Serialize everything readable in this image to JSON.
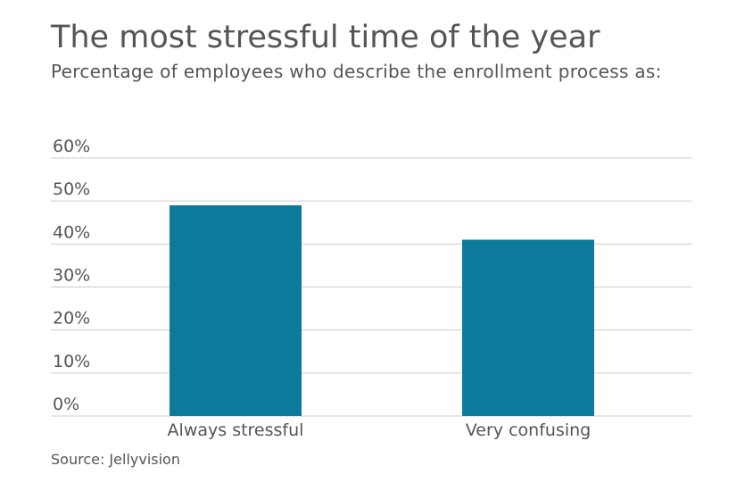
{
  "chart_data": {
    "type": "bar",
    "title": "The most stressful time of the year",
    "subtitle": "Percentage of employees who describe the enrollment process as:",
    "source": "Source: Jellyvision",
    "categories": [
      "Always stressful",
      "Very confusing"
    ],
    "values": [
      49,
      41
    ],
    "color": "#0c7a9a",
    "ylim": [
      0,
      60
    ],
    "yticks": [
      {
        "value": 0,
        "label": "0%"
      },
      {
        "value": 10,
        "label": "10%"
      },
      {
        "value": 20,
        "label": "20%"
      },
      {
        "value": 30,
        "label": "30%"
      },
      {
        "value": 40,
        "label": "40%"
      },
      {
        "value": 50,
        "label": "50%"
      },
      {
        "value": 60,
        "label": "60%"
      }
    ],
    "grid": true
  }
}
